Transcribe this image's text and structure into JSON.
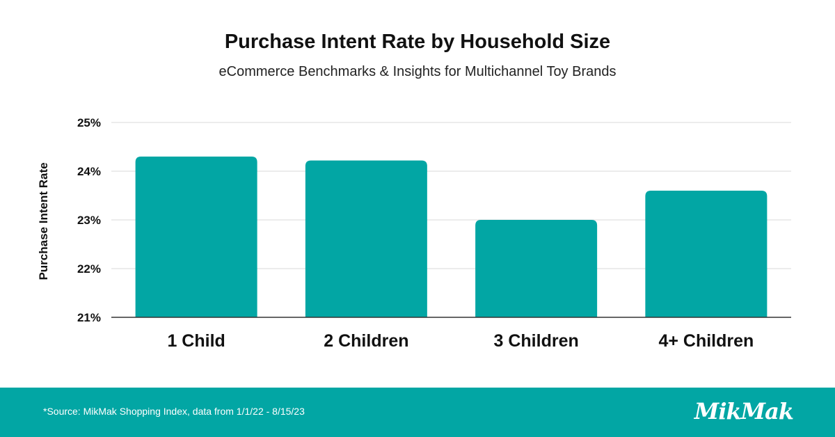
{
  "chart_data": {
    "type": "bar",
    "title": "Purchase Intent Rate by Household Size",
    "subtitle": "eCommerce Benchmarks & Insights for Multichannel Toy Brands",
    "ylabel": "Purchase Intent Rate",
    "xlabel": "",
    "categories": [
      "1 Child",
      "2 Children",
      "3 Children",
      "4+ Children"
    ],
    "values": [
      24.3,
      24.22,
      23.0,
      23.6
    ],
    "ylim": [
      21,
      25
    ],
    "yticks": [
      21,
      22,
      23,
      24,
      25
    ],
    "ytick_labels": [
      "21%",
      "22%",
      "23%",
      "24%",
      "25%"
    ],
    "grid": true,
    "bar_color": "#02a6a4"
  },
  "footer": {
    "source": "*Source: MikMak Shopping Index, data from 1/1/22 - 8/15/23",
    "logo_text": "MikMak",
    "background": "#02a6a4"
  }
}
